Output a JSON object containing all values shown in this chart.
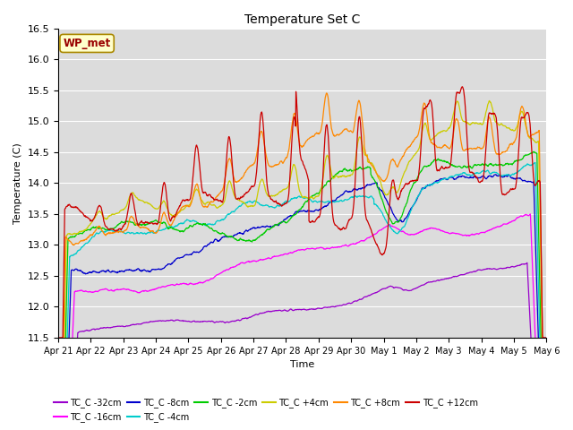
{
  "title": "Temperature Set C",
  "xlabel": "Time",
  "ylabel": "Temperature (C)",
  "ylim": [
    11.5,
    16.5
  ],
  "bg_color": "#dcdcdc",
  "annotation_text": "WP_met",
  "annotation_box_color": "#ffffcc",
  "annotation_text_color": "#990000",
  "series_colors": {
    "TC_C -32cm": "#9900cc",
    "TC_C -16cm": "#ff00ff",
    "TC_C -8cm": "#0000cc",
    "TC_C -4cm": "#00cccc",
    "TC_C -2cm": "#00cc00",
    "TC_C +4cm": "#cccc00",
    "TC_C +8cm": "#ff8800",
    "TC_C +12cm": "#cc0000"
  },
  "x_tick_labels": [
    "Apr 21",
    "Apr 22",
    "Apr 23",
    "Apr 24",
    "Apr 25",
    "Apr 26",
    "Apr 27",
    "Apr 28",
    "Apr 29",
    "Apr 30",
    "May 1",
    "May 2",
    "May 3",
    "May 4",
    "May 5",
    "May 6"
  ],
  "n_points": 1500,
  "figsize": [
    6.4,
    4.8
  ],
  "dpi": 100
}
